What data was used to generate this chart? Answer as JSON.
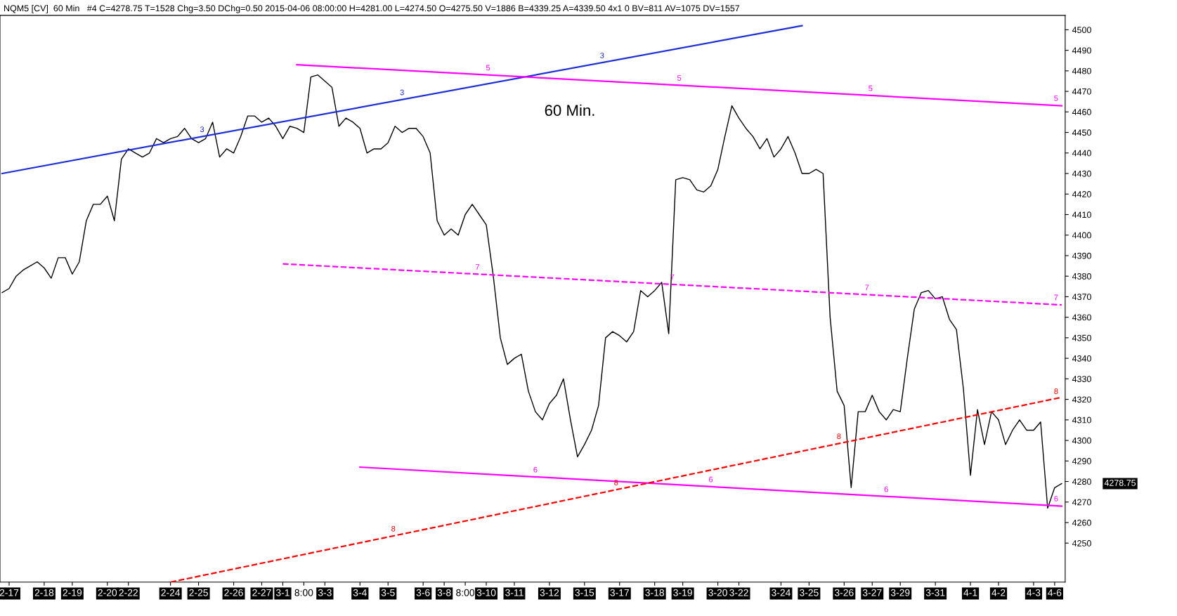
{
  "chart_data": {
    "type": "line",
    "title": "NQM5 [CV]  60 Min   #4 C=4278.75 T=1528 Chg=3.50 DChg=0.50 2015-04-06 08:00:00 H=4281.00 L=4274.50 O=4275.50 V=1886 B=4339.25 A=4339.50 4x1 0 BV=811 AV=1075 DV=1557",
    "categories": [
      null,
      "2-17",
      null,
      null,
      null,
      null,
      "2-18",
      null,
      null,
      null,
      "2-19",
      null,
      null,
      null,
      null,
      "2-20",
      null,
      null,
      "2-22",
      null,
      null,
      null,
      null,
      null,
      "2-24",
      null,
      null,
      null,
      "2-25",
      null,
      null,
      null,
      null,
      "2-26",
      null,
      null,
      null,
      "2-27",
      null,
      null,
      "3-1",
      null,
      null,
      "8:00",
      null,
      null,
      "3-3",
      null,
      null,
      null,
      null,
      "3-4",
      null,
      null,
      null,
      "3-5",
      null,
      null,
      null,
      null,
      "3-6",
      null,
      null,
      "3-8",
      null,
      null,
      "8:00",
      null,
      null,
      "3-10",
      null,
      null,
      null,
      "3-11",
      null,
      null,
      null,
      null,
      "3-12",
      null,
      null,
      null,
      null,
      "3-15",
      null,
      null,
      null,
      null,
      "3-17",
      null,
      null,
      null,
      null,
      "3-18",
      null,
      null,
      null,
      "3-19",
      null,
      null,
      null,
      null,
      "3-20",
      null,
      null,
      "3-22",
      null,
      null,
      null,
      null,
      null,
      "3-24",
      null,
      null,
      null,
      "3-25",
      null,
      null,
      null,
      null,
      "3-26",
      null,
      null,
      null,
      "3-27",
      null,
      null,
      null,
      "3-29",
      null,
      null,
      null,
      null,
      "3-31",
      null,
      null,
      null,
      null,
      "4-1",
      null,
      null,
      null,
      "4-2",
      null,
      null,
      null,
      null,
      "4-3",
      null,
      null,
      "4-6",
      null
    ],
    "series": [
      {
        "color": "#000000",
        "line_style": "solid",
        "values": [
          4372,
          4374,
          4380,
          4383,
          4385,
          4387,
          4384,
          4379,
          4389,
          4389,
          4381,
          4387,
          4407,
          4415,
          4415,
          4419,
          4407,
          4437,
          4442,
          4440,
          4438,
          4440,
          4447,
          4445,
          4447,
          4448,
          4452,
          4447,
          4445,
          4447,
          4455,
          4438,
          4442,
          4440,
          4448,
          4458,
          4458,
          4455,
          4457,
          4453,
          4447,
          4453,
          4452,
          4450,
          4477,
          4478,
          4475,
          4472,
          4453,
          4457,
          4455,
          4452,
          4440,
          4442,
          4442,
          4445,
          4453,
          4450,
          4452,
          4452,
          4448,
          4440,
          4407,
          4400,
          4403,
          4400,
          4410,
          4415,
          4410,
          4405,
          4380,
          4350,
          4337,
          4340,
          4342,
          4324,
          4314,
          4310,
          4318,
          4322,
          4330,
          4310,
          4292,
          4298,
          4305,
          4317,
          4350,
          4353,
          4351,
          4348,
          4353,
          4373,
          4370,
          4373,
          4377,
          4352,
          4427,
          4428,
          4427,
          4422,
          4421,
          4424,
          4432,
          4448,
          4463,
          4457,
          4452,
          4448,
          4442,
          4447,
          4438,
          4442,
          4448,
          4440,
          4430,
          4430,
          4432,
          4430,
          4360,
          4324,
          4317,
          4277,
          4314,
          4314,
          4322,
          4314,
          4310,
          4315,
          4314,
          4340,
          4364,
          4372,
          4373,
          4369,
          4370,
          4359,
          4354,
          4325,
          4283,
          4315,
          4298,
          4314,
          4310,
          4298,
          4305,
          4310,
          4305,
          4305,
          4309,
          4267,
          4277,
          4279
        ]
      },
      {
        "color": "#1c2fd8",
        "line_style": "solid",
        "values": [
          4430,
          null,
          null,
          null,
          null,
          null,
          null,
          null,
          null,
          null,
          null,
          null,
          null,
          null,
          null,
          null,
          null,
          null,
          null,
          null,
          null,
          null,
          null,
          null,
          null,
          null,
          null,
          null,
          null,
          null,
          null,
          null,
          null,
          null,
          null,
          null,
          null,
          null,
          null,
          null,
          null,
          null,
          null,
          null,
          null,
          null,
          null,
          null,
          null,
          null,
          null,
          null,
          null,
          null,
          null,
          null,
          null,
          null,
          null,
          null,
          null,
          null,
          null,
          null,
          null,
          null,
          null,
          null,
          null,
          null,
          null,
          null,
          null,
          null,
          null,
          null,
          null,
          null,
          null,
          null,
          null,
          null,
          null,
          null,
          null,
          null,
          null,
          null,
          null,
          null,
          null,
          null,
          null,
          null,
          null,
          null,
          null,
          null,
          null,
          null,
          null,
          null,
          null,
          null,
          null,
          null,
          null,
          null,
          null,
          null,
          null,
          null,
          null,
          null,
          4502,
          null,
          null,
          null,
          null,
          null,
          null,
          null,
          null,
          null,
          null,
          null,
          null,
          null,
          null,
          null,
          null,
          null,
          null,
          null,
          null,
          null,
          null,
          null,
          null,
          null,
          null,
          null,
          null,
          null,
          null,
          null,
          null,
          null,
          null,
          null,
          null,
          null
        ]
      },
      {
        "color": "#ff00ff",
        "line_style": "solid",
        "values": [
          null,
          null,
          null,
          null,
          null,
          null,
          null,
          null,
          null,
          null,
          null,
          null,
          null,
          null,
          null,
          null,
          null,
          null,
          null,
          null,
          null,
          null,
          null,
          null,
          null,
          null,
          null,
          null,
          null,
          null,
          null,
          null,
          null,
          null,
          null,
          null,
          null,
          null,
          null,
          null,
          null,
          null,
          4483,
          null,
          null,
          null,
          null,
          null,
          null,
          null,
          null,
          null,
          null,
          null,
          null,
          null,
          null,
          null,
          null,
          null,
          null,
          null,
          null,
          null,
          null,
          null,
          null,
          null,
          null,
          null,
          null,
          null,
          null,
          null,
          null,
          null,
          null,
          null,
          null,
          null,
          null,
          null,
          null,
          null,
          null,
          null,
          null,
          null,
          null,
          null,
          null,
          null,
          null,
          null,
          null,
          null,
          null,
          null,
          null,
          null,
          null,
          null,
          null,
          null,
          null,
          null,
          null,
          null,
          null,
          null,
          null,
          null,
          null,
          null,
          null,
          null,
          null,
          null,
          null,
          null,
          null,
          null,
          null,
          null,
          null,
          null,
          null,
          null,
          null,
          null,
          null,
          null,
          null,
          null,
          null,
          null,
          null,
          null,
          null,
          null,
          null,
          null,
          null,
          null,
          null,
          null,
          null,
          null,
          null,
          null,
          null,
          4463
        ]
      },
      {
        "color": "#ff00ff",
        "line_style": "dashed",
        "values": [
          null,
          null,
          null,
          null,
          null,
          null,
          null,
          null,
          null,
          null,
          null,
          null,
          null,
          null,
          null,
          null,
          null,
          null,
          null,
          null,
          null,
          null,
          null,
          null,
          null,
          null,
          null,
          null,
          null,
          null,
          null,
          null,
          null,
          null,
          null,
          null,
          null,
          null,
          null,
          null,
          4386,
          null,
          null,
          null,
          null,
          null,
          null,
          null,
          null,
          null,
          null,
          null,
          null,
          null,
          null,
          null,
          null,
          null,
          null,
          null,
          null,
          null,
          null,
          null,
          null,
          null,
          null,
          null,
          null,
          null,
          null,
          null,
          null,
          null,
          null,
          null,
          null,
          null,
          null,
          null,
          null,
          null,
          null,
          null,
          null,
          null,
          null,
          null,
          null,
          null,
          null,
          null,
          null,
          null,
          null,
          null,
          null,
          null,
          null,
          null,
          null,
          null,
          null,
          null,
          null,
          null,
          null,
          null,
          null,
          null,
          null,
          null,
          null,
          null,
          null,
          null,
          null,
          null,
          null,
          null,
          null,
          null,
          null,
          null,
          null,
          null,
          null,
          null,
          null,
          null,
          null,
          null,
          null,
          null,
          null,
          null,
          null,
          null,
          null,
          null,
          null,
          null,
          null,
          null,
          null,
          null,
          null,
          null,
          null,
          null,
          null,
          4366
        ]
      },
      {
        "color": "#ff00ff",
        "line_style": "solid",
        "values": [
          null,
          null,
          null,
          null,
          null,
          null,
          null,
          null,
          null,
          null,
          null,
          null,
          null,
          null,
          null,
          null,
          null,
          null,
          null,
          null,
          null,
          null,
          null,
          null,
          null,
          null,
          null,
          null,
          null,
          null,
          null,
          null,
          null,
          null,
          null,
          null,
          null,
          null,
          null,
          null,
          null,
          null,
          null,
          null,
          null,
          null,
          null,
          null,
          null,
          null,
          null,
          4287,
          null,
          null,
          null,
          null,
          null,
          null,
          null,
          null,
          null,
          null,
          null,
          null,
          null,
          null,
          null,
          null,
          null,
          null,
          null,
          null,
          null,
          null,
          null,
          null,
          null,
          null,
          null,
          null,
          null,
          null,
          null,
          null,
          null,
          null,
          null,
          null,
          null,
          null,
          null,
          null,
          null,
          null,
          null,
          null,
          null,
          null,
          null,
          null,
          null,
          null,
          null,
          null,
          null,
          null,
          null,
          null,
          null,
          null,
          null,
          null,
          null,
          null,
          null,
          null,
          null,
          null,
          null,
          null,
          null,
          null,
          null,
          null,
          null,
          null,
          null,
          null,
          null,
          null,
          null,
          null,
          null,
          null,
          null,
          null,
          null,
          null,
          null,
          null,
          null,
          null,
          null,
          null,
          null,
          null,
          null,
          null,
          null,
          null,
          null,
          4268
        ]
      },
      {
        "color": "#ff0000",
        "line_style": "dashed",
        "values": [
          null,
          null,
          null,
          null,
          null,
          null,
          null,
          null,
          null,
          null,
          null,
          null,
          null,
          null,
          null,
          null,
          null,
          null,
          null,
          null,
          null,
          null,
          null,
          null,
          4231,
          null,
          null,
          null,
          null,
          null,
          null,
          null,
          null,
          null,
          null,
          null,
          null,
          null,
          null,
          null,
          null,
          null,
          null,
          null,
          null,
          null,
          null,
          null,
          null,
          null,
          null,
          null,
          null,
          null,
          null,
          null,
          null,
          null,
          null,
          null,
          null,
          null,
          null,
          null,
          null,
          null,
          null,
          null,
          null,
          null,
          null,
          null,
          null,
          null,
          null,
          null,
          null,
          null,
          null,
          null,
          null,
          null,
          null,
          null,
          null,
          null,
          null,
          null,
          null,
          null,
          null,
          null,
          null,
          null,
          null,
          null,
          null,
          null,
          null,
          null,
          null,
          null,
          null,
          null,
          null,
          null,
          null,
          null,
          null,
          null,
          null,
          null,
          null,
          null,
          null,
          null,
          null,
          null,
          null,
          null,
          null,
          null,
          null,
          null,
          null,
          null,
          null,
          null,
          null,
          null,
          null,
          null,
          null,
          null,
          null,
          null,
          null,
          null,
          null,
          null,
          null,
          null,
          null,
          null,
          null,
          null,
          null,
          null,
          null,
          null,
          null,
          4321
        ]
      }
    ],
    "ylim": [
      4231,
      4507
    ],
    "yticks": [
      4250,
      4260,
      4270,
      4280,
      4290,
      4300,
      4310,
      4320,
      4330,
      4340,
      4350,
      4360,
      4370,
      4380,
      4390,
      4400,
      4410,
      4420,
      4430,
      4440,
      4450,
      4460,
      4470,
      4480,
      4490,
      4500
    ],
    "grid": false,
    "legend": false,
    "marker": "none",
    "annotations": [
      "60 Min.",
      "4278.75",
      "3",
      "3",
      "3",
      "5",
      "5",
      "5",
      "5",
      "7",
      "7",
      "7",
      "7",
      "6",
      "6",
      "6",
      "6",
      "8",
      "8",
      "8",
      "8"
    ]
  }
}
